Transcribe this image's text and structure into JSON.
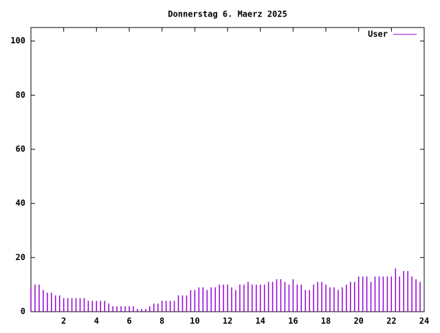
{
  "chart_data": {
    "type": "impulses",
    "title": "Donnerstag 6. Maerz 2025",
    "x": [
      0,
      0.25,
      0.5,
      0.75,
      1,
      1.25,
      1.5,
      1.75,
      2,
      2.25,
      2.5,
      2.75,
      3,
      3.25,
      3.5,
      3.75,
      4,
      4.25,
      4.5,
      4.75,
      5,
      5.25,
      5.5,
      5.75,
      6,
      6.25,
      6.5,
      6.75,
      7,
      7.25,
      7.5,
      7.75,
      8,
      8.25,
      8.5,
      8.75,
      9,
      9.25,
      9.5,
      9.75,
      10,
      10.25,
      10.5,
      10.75,
      11,
      11.25,
      11.5,
      11.75,
      12,
      12.25,
      12.5,
      12.75,
      13,
      13.25,
      13.5,
      13.75,
      14,
      14.25,
      14.5,
      14.75,
      15,
      15.25,
      15.5,
      15.75,
      16,
      16.25,
      16.5,
      16.75,
      17,
      17.25,
      17.5,
      17.75,
      18,
      18.25,
      18.5,
      18.75,
      19,
      19.25,
      19.5,
      19.75,
      20,
      20.25,
      20.5,
      20.75,
      21,
      21.25,
      21.5,
      21.75,
      22,
      22.25,
      22.5,
      22.75,
      23,
      23.25,
      23.5,
      23.75
    ],
    "series": [
      {
        "name": "User",
        "color": "#9400d3",
        "values": [
          9,
          10,
          10,
          8,
          7,
          7,
          6,
          6,
          5,
          5,
          5,
          5,
          5,
          5,
          4,
          4,
          4,
          4,
          4,
          3,
          2,
          2,
          2,
          2,
          2,
          2,
          1,
          1,
          1,
          2,
          3,
          3,
          4,
          4,
          4,
          4,
          6,
          6,
          6,
          8,
          8,
          9,
          9,
          8,
          9,
          9,
          10,
          10,
          10,
          9,
          8,
          10,
          10,
          11,
          10,
          10,
          10,
          10,
          11,
          11,
          12,
          12,
          11,
          10,
          12,
          10,
          10,
          8,
          8,
          10,
          11,
          11,
          10,
          9,
          9,
          8,
          9,
          10,
          11,
          11,
          13,
          13,
          13,
          11,
          13,
          13,
          13,
          13,
          13,
          16,
          13,
          15,
          15,
          13,
          12,
          11
        ]
      }
    ],
    "xlim": [
      0,
      24
    ],
    "xticks": [
      2,
      4,
      6,
      8,
      10,
      12,
      14,
      16,
      18,
      20,
      22,
      24
    ],
    "ylim": [
      0,
      105
    ],
    "yticks": [
      0,
      20,
      40,
      60,
      80,
      100
    ],
    "legend": "top-right"
  }
}
